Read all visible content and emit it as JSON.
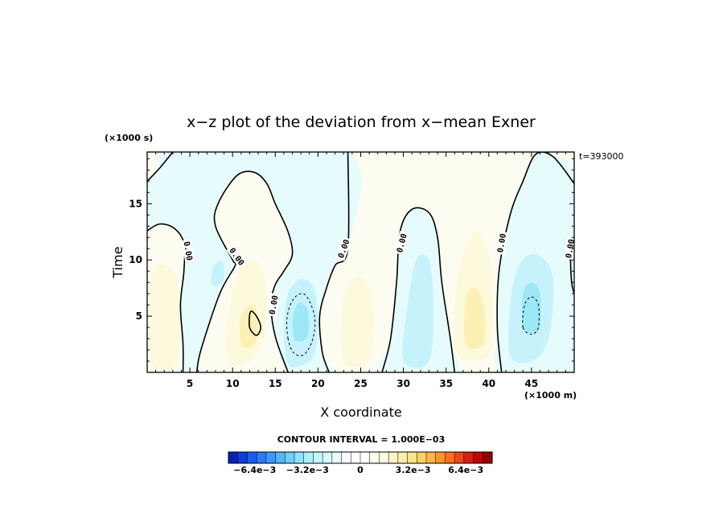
{
  "chart_data": {
    "type": "heatmap",
    "title": "x−z plot of the deviation from x−mean Exner",
    "xlabel": "X coordinate",
    "ylabel": "Time",
    "x_unit": "(×1000 m)",
    "y_unit": "(×1000 s)",
    "time_stamp": "t=393000",
    "xlim": [
      0,
      50
    ],
    "ylim": [
      0,
      19.6
    ],
    "x_ticks": [
      5,
      10,
      15,
      20,
      25,
      30,
      35,
      40,
      45
    ],
    "y_ticks": [
      5,
      10,
      15
    ],
    "x_tick_labels": [
      "5",
      "10",
      "15",
      "20",
      "25",
      "30",
      "35",
      "40",
      "45"
    ],
    "y_tick_labels": [
      "5",
      "10",
      "15"
    ],
    "contour_interval_label": "CONTOUR INTERVAL = 1.000E−03",
    "contour_interval": 0.001,
    "zero_contour_label": "0.00",
    "colorbar": {
      "min": -0.008,
      "max": 0.008,
      "tick_labels": [
        "−6.4e−3",
        "−3.2e−3",
        "0",
        "3.2e−3",
        "6.4e−3"
      ],
      "colors": [
        "#0a1fb4",
        "#0f3dd6",
        "#1a5ef0",
        "#2a7cfa",
        "#3d98fc",
        "#55b4fc",
        "#70cffb",
        "#8de3fb",
        "#a8f0fb",
        "#c2f6fb",
        "#d8f9fb",
        "#e9fbfb",
        "#f4fdfd",
        "#ffffff",
        "#ffffff",
        "#fdfcf0",
        "#fcfae0",
        "#fcf6c8",
        "#fcf0a8",
        "#fce488",
        "#fcd068",
        "#fcb448",
        "#fc9430",
        "#f87020",
        "#ec4818",
        "#d82010",
        "#bc0808",
        "#980000"
      ]
    },
    "regions": [
      {
        "sign": "neg",
        "level": 1,
        "polygon": [
          [
            3.0,
            19.6
          ],
          [
            23.5,
            19.6
          ],
          [
            23.5,
            11.0
          ],
          [
            22.0,
            9.5
          ],
          [
            21.0,
            7.5
          ],
          [
            20.2,
            5.0
          ],
          [
            20.5,
            1.8
          ],
          [
            21.3,
            0
          ],
          [
            16.5,
            0
          ],
          [
            15.0,
            3.2
          ],
          [
            14.5,
            6.0
          ],
          [
            15.0,
            7.8
          ],
          [
            16.0,
            9.0
          ],
          [
            17.0,
            10.5
          ],
          [
            16.5,
            12.5
          ],
          [
            15.0,
            15.0
          ],
          [
            14.0,
            16.8
          ],
          [
            12.5,
            17.8
          ],
          [
            10.5,
            17.5
          ],
          [
            8.3,
            15.0
          ],
          [
            8.0,
            13.0
          ],
          [
            10.0,
            10.0
          ],
          [
            10.3,
            9.5
          ],
          [
            8.5,
            7.0
          ],
          [
            6.3,
            2.0
          ],
          [
            5.8,
            0
          ],
          [
            4.2,
            0
          ],
          [
            4.2,
            2.5
          ],
          [
            3.9,
            6.0
          ],
          [
            4.3,
            9.0
          ],
          [
            4.3,
            11.5
          ],
          [
            3.2,
            12.8
          ],
          [
            1.5,
            13.2
          ],
          [
            0,
            12.6
          ],
          [
            0,
            17.0
          ],
          [
            1.5,
            18.2
          ]
        ]
      },
      {
        "sign": "neg",
        "level": 1,
        "polygon": [
          [
            27.5,
            0
          ],
          [
            28.5,
            3.0
          ],
          [
            29.2,
            8.0
          ],
          [
            29.6,
            12.5
          ],
          [
            31.0,
            14.5
          ],
          [
            33.0,
            14.2
          ],
          [
            34.0,
            12.0
          ],
          [
            34.5,
            8.0
          ],
          [
            35.5,
            3.0
          ],
          [
            36.0,
            0
          ]
        ]
      },
      {
        "sign": "neg",
        "level": 1,
        "polygon": [
          [
            41.5,
            0
          ],
          [
            41.0,
            4.0
          ],
          [
            41.2,
            9.0
          ],
          [
            42.5,
            14.0
          ],
          [
            44.0,
            17.0
          ],
          [
            45.5,
            19.4
          ],
          [
            47.5,
            19.2
          ],
          [
            50,
            16.8
          ],
          [
            50,
            0
          ]
        ]
      },
      {
        "sign": "neg",
        "level": 2,
        "polygon": [
          [
            16.5,
            0.8
          ],
          [
            16.0,
            4.0
          ],
          [
            16.5,
            7.0
          ],
          [
            18.0,
            8.3
          ],
          [
            19.5,
            7.5
          ],
          [
            20.0,
            4.5
          ],
          [
            19.5,
            1.5
          ],
          [
            18.0,
            0.6
          ]
        ]
      },
      {
        "sign": "neg",
        "level": 2,
        "polygon": [
          [
            30.0,
            1.0
          ],
          [
            30.5,
            6.0
          ],
          [
            31.5,
            10.0
          ],
          [
            33.0,
            10.0
          ],
          [
            33.5,
            6.0
          ],
          [
            33.0,
            1.0
          ]
        ]
      },
      {
        "sign": "neg",
        "level": 2,
        "polygon": [
          [
            42.5,
            1.5
          ],
          [
            42.5,
            6.0
          ],
          [
            43.5,
            9.5
          ],
          [
            45.5,
            10.5
          ],
          [
            47.5,
            8.5
          ],
          [
            47.0,
            3.0
          ],
          [
            45.0,
            1.0
          ]
        ]
      },
      {
        "sign": "neg",
        "level": 2,
        "polygon": [
          [
            7.5,
            8.0
          ],
          [
            7.8,
            9.5
          ],
          [
            8.8,
            9.8
          ],
          [
            9.0,
            8.4
          ],
          [
            8.2,
            7.7
          ]
        ]
      },
      {
        "sign": "neg",
        "level": 3,
        "polygon": [
          [
            17.2,
            3.0
          ],
          [
            17.1,
            5.0
          ],
          [
            17.8,
            6.2
          ],
          [
            18.8,
            5.5
          ],
          [
            18.9,
            3.5
          ],
          [
            18.2,
            2.8
          ]
        ]
      },
      {
        "sign": "neg",
        "level": 3,
        "polygon": [
          [
            44.0,
            4.0
          ],
          [
            44.0,
            7.0
          ],
          [
            45.0,
            8.0
          ],
          [
            46.0,
            7.0
          ],
          [
            46.0,
            4.0
          ],
          [
            45.0,
            3.5
          ]
        ]
      },
      {
        "sign": "pos",
        "level": 1,
        "polygon": [
          [
            9.5,
            1.0
          ],
          [
            9.5,
            5.0
          ],
          [
            10.5,
            8.5
          ],
          [
            12.0,
            10.0
          ],
          [
            13.5,
            9.0
          ],
          [
            14.0,
            6.0
          ],
          [
            13.5,
            2.5
          ],
          [
            12.0,
            1.0
          ]
        ]
      },
      {
        "sign": "pos",
        "level": 1,
        "polygon": [
          [
            0.5,
            1.0
          ],
          [
            0.5,
            8.5
          ],
          [
            2.0,
            9.5
          ],
          [
            3.5,
            8.0
          ],
          [
            3.5,
            1.0
          ]
        ]
      },
      {
        "sign": "pos",
        "level": 1,
        "polygon": [
          [
            23.0,
            1.0
          ],
          [
            23.0,
            6.5
          ],
          [
            24.5,
            8.5
          ],
          [
            26.0,
            7.5
          ],
          [
            26.5,
            4.5
          ],
          [
            25.8,
            1.0
          ]
        ]
      },
      {
        "sign": "pos",
        "level": 1,
        "polygon": [
          [
            36.5,
            1.5
          ],
          [
            36.0,
            6.0
          ],
          [
            37.0,
            10.5
          ],
          [
            38.5,
            12.5
          ],
          [
            40.0,
            10.5
          ],
          [
            40.5,
            5.0
          ],
          [
            40.0,
            1.5
          ]
        ]
      },
      {
        "sign": "pos",
        "level": 2,
        "polygon": [
          [
            11.0,
            2.5
          ],
          [
            11.0,
            5.0
          ],
          [
            12.5,
            6.0
          ],
          [
            13.0,
            4.0
          ],
          [
            12.3,
            2.3
          ]
        ]
      },
      {
        "sign": "pos",
        "level": 2,
        "polygon": [
          [
            37.3,
            2.5
          ],
          [
            37.3,
            6.5
          ],
          [
            38.5,
            7.5
          ],
          [
            39.5,
            5.5
          ],
          [
            39.3,
            2.5
          ]
        ]
      }
    ],
    "contours": [
      {
        "style": "solid",
        "closed": false,
        "points": [
          [
            3.0,
            19.6
          ],
          [
            1.5,
            18.2
          ],
          [
            0,
            17.0
          ]
        ]
      },
      {
        "style": "solid",
        "closed": false,
        "points": [
          [
            0,
            12.6
          ],
          [
            1.5,
            13.2
          ],
          [
            3.2,
            12.8
          ],
          [
            4.3,
            11.5
          ],
          [
            4.3,
            9.0
          ],
          [
            3.9,
            6.0
          ],
          [
            4.2,
            2.5
          ],
          [
            4.2,
            0
          ]
        ]
      },
      {
        "style": "solid",
        "closed": false,
        "points": [
          [
            5.8,
            0
          ],
          [
            6.3,
            2.0
          ],
          [
            8.5,
            7.0
          ],
          [
            10.3,
            9.5
          ],
          [
            10.0,
            10.0
          ],
          [
            8.0,
            13.0
          ],
          [
            8.3,
            15.0
          ],
          [
            10.5,
            17.5
          ],
          [
            12.5,
            17.8
          ],
          [
            14.0,
            16.8
          ],
          [
            15.0,
            15.0
          ],
          [
            16.5,
            12.5
          ],
          [
            17.0,
            10.5
          ],
          [
            16.0,
            9.0
          ],
          [
            15.0,
            7.8
          ],
          [
            14.5,
            6.0
          ],
          [
            15.0,
            3.2
          ],
          [
            16.5,
            0
          ]
        ]
      },
      {
        "style": "solid",
        "closed": false,
        "points": [
          [
            23.5,
            19.6
          ],
          [
            23.5,
            11.0
          ],
          [
            22.0,
            9.5
          ],
          [
            21.0,
            7.5
          ],
          [
            20.2,
            5.0
          ],
          [
            20.5,
            1.8
          ],
          [
            21.3,
            0
          ]
        ]
      },
      {
        "style": "solid",
        "closed": false,
        "points": [
          [
            27.5,
            0
          ],
          [
            28.5,
            3.0
          ],
          [
            29.2,
            8.0
          ],
          [
            29.6,
            12.5
          ],
          [
            31.0,
            14.5
          ],
          [
            33.0,
            14.2
          ],
          [
            34.0,
            12.0
          ],
          [
            34.5,
            8.0
          ],
          [
            35.5,
            3.0
          ],
          [
            36.0,
            0
          ]
        ]
      },
      {
        "style": "solid",
        "closed": false,
        "points": [
          [
            41.5,
            0
          ],
          [
            41.0,
            4.0
          ],
          [
            41.2,
            9.0
          ],
          [
            42.5,
            14.0
          ],
          [
            44.0,
            17.0
          ],
          [
            45.5,
            19.4
          ],
          [
            47.5,
            19.2
          ],
          [
            50,
            16.8
          ]
        ]
      },
      {
        "style": "solid",
        "closed": false,
        "points": [
          [
            50,
            12.0
          ],
          [
            49.6,
            10.5
          ],
          [
            49.7,
            8.0
          ],
          [
            50,
            7.0
          ]
        ]
      },
      {
        "style": "solid",
        "closed": true,
        "points": [
          [
            12.0,
            4.0
          ],
          [
            12.1,
            5.4
          ],
          [
            12.8,
            5.0
          ],
          [
            13.3,
            4.0
          ],
          [
            12.8,
            3.3
          ]
        ]
      },
      {
        "style": "dashed",
        "closed": true,
        "points": [
          [
            16.5,
            3.0
          ],
          [
            16.4,
            5.0
          ],
          [
            17.2,
            6.6
          ],
          [
            18.5,
            6.9
          ],
          [
            19.6,
            5.0
          ],
          [
            19.4,
            3.0
          ],
          [
            18.4,
            1.6
          ],
          [
            17.2,
            1.7
          ]
        ]
      },
      {
        "style": "dashed",
        "closed": true,
        "points": [
          [
            44.0,
            4.0
          ],
          [
            44.2,
            6.0
          ],
          [
            45.0,
            6.7
          ],
          [
            45.8,
            6.0
          ],
          [
            45.8,
            4.0
          ],
          [
            45.0,
            3.4
          ]
        ]
      }
    ],
    "contour_labels": [
      {
        "x": 4.8,
        "y": 10.8,
        "angle": 80
      },
      {
        "x": 10.5,
        "y": 10.3,
        "angle": 55
      },
      {
        "x": 14.8,
        "y": 6.0,
        "angle": -80
      },
      {
        "x": 23.0,
        "y": 11.0,
        "angle": -70
      },
      {
        "x": 29.8,
        "y": 11.5,
        "angle": -75
      },
      {
        "x": 41.5,
        "y": 11.5,
        "angle": -80
      },
      {
        "x": 49.5,
        "y": 11.0,
        "angle": -80
      }
    ]
  }
}
